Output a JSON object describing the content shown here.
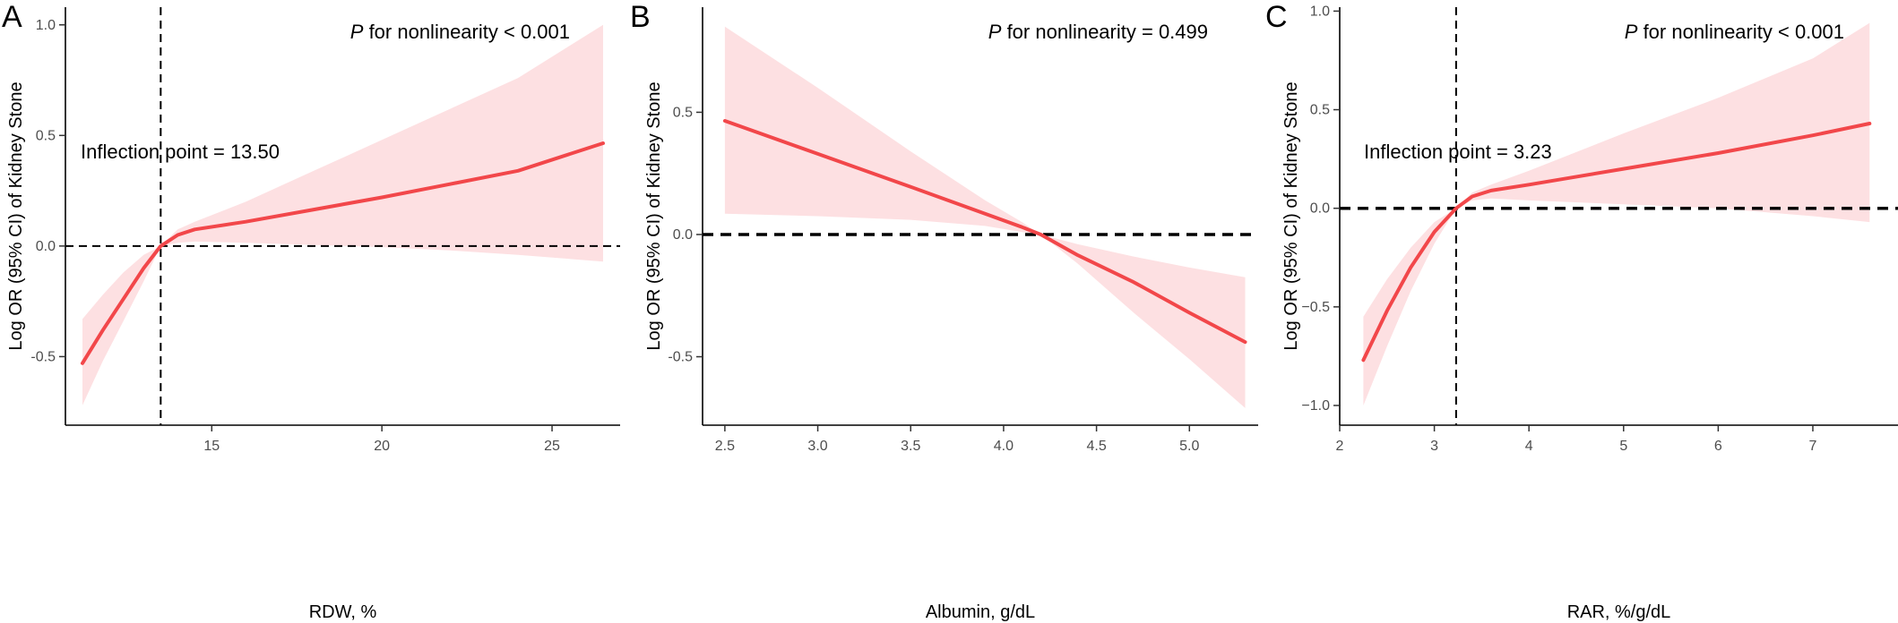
{
  "chart_data": [
    {
      "panel_label": "A",
      "type": "line",
      "xlabel": "RDW, %",
      "ylabel": "Log OR (95% CI) of Kidney Stone",
      "xlim": [
        10.7,
        27.0
      ],
      "ylim": [
        -0.81,
        1.08
      ],
      "xticks": [
        15,
        20,
        25
      ],
      "yticks": [
        -0.5,
        0.0,
        0.5,
        1.0
      ],
      "ytick_labels": [
        "-0.5",
        "0.0",
        "0.5",
        "1.0"
      ],
      "p_prefix": "P",
      "p_text": " for nonlinearity < 0.001",
      "inflection_text": "Inflection point = 13.50",
      "vline": 13.5,
      "hline": 0,
      "x": [
        11.2,
        11.8,
        12.4,
        13.0,
        13.5,
        14.0,
        14.5,
        16,
        18,
        20,
        22,
        24,
        26.5
      ],
      "y": [
        -0.53,
        -0.38,
        -0.24,
        -0.1,
        0.0,
        0.05,
        0.075,
        0.11,
        0.165,
        0.22,
        0.28,
        0.34,
        0.465
      ],
      "ci_lower": [
        -0.72,
        -0.52,
        -0.34,
        -0.16,
        0.0,
        0.015,
        0.02,
        0.015,
        0.005,
        -0.005,
        -0.02,
        -0.04,
        -0.07
      ],
      "ci_upper": [
        -0.33,
        -0.22,
        -0.12,
        -0.04,
        0.0,
        0.075,
        0.11,
        0.2,
        0.34,
        0.48,
        0.62,
        0.76,
        1.0
      ],
      "line_color": "#f2474a",
      "band_color": "#fde0e2"
    },
    {
      "panel_label": "B",
      "type": "line",
      "xlabel": "Albumin, g/dL",
      "ylabel": "Log OR (95% CI) of Kidney Stone",
      "xlim": [
        2.38,
        5.37
      ],
      "ylim": [
        -0.78,
        0.93
      ],
      "xticks": [
        2.5,
        3.0,
        3.5,
        4.0,
        4.5,
        5.0
      ],
      "xtick_labels": [
        "2.5",
        "3.0",
        "3.5",
        "4.0",
        "4.5",
        "5.0"
      ],
      "yticks": [
        -0.5,
        0.0,
        0.5
      ],
      "ytick_labels": [
        "-0.5",
        "0.0",
        "0.5"
      ],
      "p_prefix": "P",
      "p_text": " for nonlinearity = 0.499",
      "hline": 0,
      "x": [
        2.5,
        3.0,
        3.5,
        3.9,
        4.1,
        4.2,
        4.4,
        4.7,
        5.0,
        5.3
      ],
      "y": [
        0.465,
        0.33,
        0.195,
        0.085,
        0.03,
        0.0,
        -0.085,
        -0.195,
        -0.32,
        -0.44
      ],
      "ci_lower": [
        0.085,
        0.075,
        0.06,
        0.035,
        0.01,
        0.0,
        -0.12,
        -0.32,
        -0.51,
        -0.71
      ],
      "ci_upper": [
        0.85,
        0.6,
        0.34,
        0.14,
        0.05,
        0.0,
        -0.04,
        -0.09,
        -0.135,
        -0.175
      ],
      "line_color": "#f2474a",
      "band_color": "#fde0e2"
    },
    {
      "panel_label": "C",
      "type": "line",
      "xlabel": "RAR, %/g/dL",
      "ylabel": "Log OR (95% CI) of Kidney Stone",
      "xlim": [
        2.0,
        7.9
      ],
      "ylim": [
        -1.1,
        1.02
      ],
      "xticks": [
        2,
        3,
        4,
        5,
        6,
        7
      ],
      "yticks": [
        -1.0,
        -0.5,
        0.0,
        0.5,
        1.0
      ],
      "ytick_labels": [
        "−1.0",
        "−0.5",
        "0.0",
        "0.5",
        "1.0"
      ],
      "p_prefix": "P",
      "p_text": " for nonlinearity < 0.001",
      "inflection_text": "Inflection point = 3.23",
      "vline": 3.23,
      "hline": 0,
      "x": [
        2.25,
        2.5,
        2.75,
        3.0,
        3.23,
        3.4,
        3.6,
        4.0,
        5.0,
        6.0,
        7.0,
        7.6
      ],
      "y": [
        -0.77,
        -0.52,
        -0.3,
        -0.12,
        0.0,
        0.06,
        0.09,
        0.12,
        0.2,
        0.28,
        0.37,
        0.43
      ],
      "ci_lower": [
        -1.0,
        -0.7,
        -0.42,
        -0.18,
        0.0,
        0.04,
        0.05,
        0.04,
        0.02,
        0.0,
        -0.04,
        -0.07
      ],
      "ci_upper": [
        -0.55,
        -0.36,
        -0.2,
        -0.07,
        0.0,
        0.08,
        0.12,
        0.19,
        0.38,
        0.56,
        0.76,
        0.94
      ],
      "line_color": "#f2474a",
      "band_color": "#fde0e2"
    }
  ]
}
